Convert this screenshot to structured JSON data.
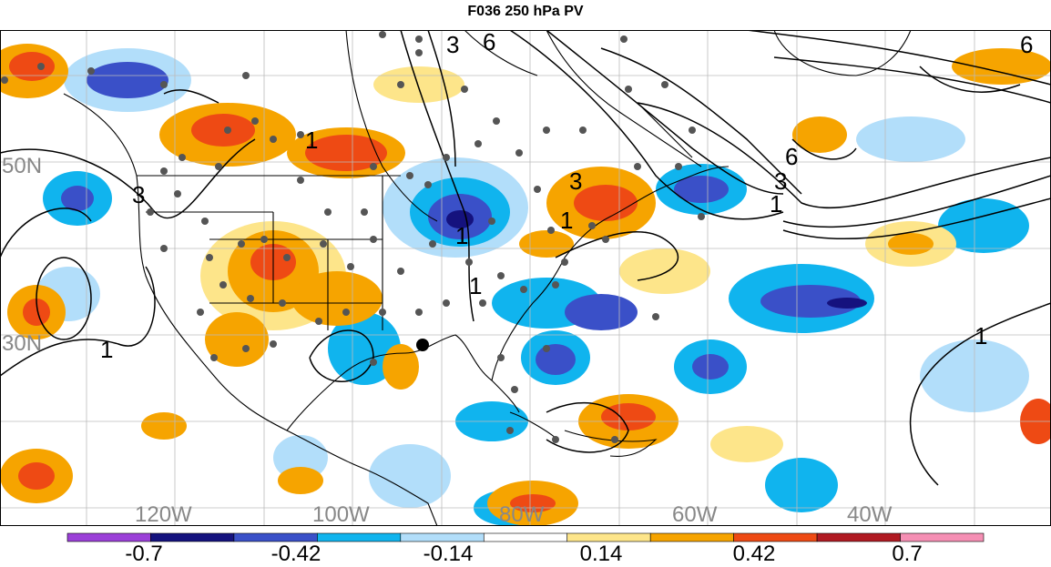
{
  "title": "F036 250 hPa PV",
  "map": {
    "latitude_labels": [
      {
        "text": "50N",
        "lat": 50
      },
      {
        "text": "30N",
        "lat": 30
      }
    ],
    "longitude_labels": [
      {
        "text": "120W",
        "lon": -120
      },
      {
        "text": "100W",
        "lon": -100
      },
      {
        "text": "80W",
        "lon": -80
      },
      {
        "text": "60W",
        "lon": -60
      },
      {
        "text": "40W",
        "lon": -40
      }
    ],
    "contour_labels": [
      "1",
      "3",
      "6"
    ],
    "grid_color": "#bbbbbb",
    "label_color": "#888888",
    "station_color": "#555555"
  },
  "colorbar": {
    "colors": [
      "#9b40d8",
      "#15127e",
      "#3a50c8",
      "#10b4ee",
      "#b2defa",
      "#ffffff",
      "#fde58a",
      "#f6a400",
      "#ee4a14",
      "#b01a22",
      "#f58fb4"
    ],
    "tick_labels": [
      "-0.7",
      "-0.42",
      "-0.14",
      "0.14",
      "0.42",
      "0.7"
    ]
  }
}
